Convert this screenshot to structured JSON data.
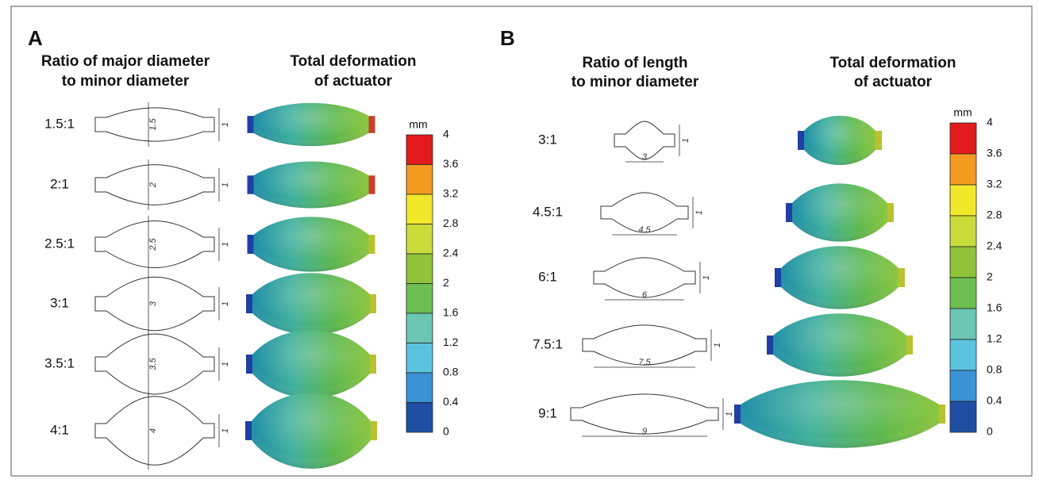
{
  "panels": [
    {
      "label": "A",
      "headers": [
        [
          "Ratio of major diameter",
          "to minor diameter"
        ],
        [
          "Total deformation",
          "of actuator"
        ]
      ],
      "rows": [
        {
          "ratio": "1.5:1",
          "dimension": "1.5",
          "minor": "1"
        },
        {
          "ratio": "2:1",
          "dimension": "2",
          "minor": "1"
        },
        {
          "ratio": "2.5:1",
          "dimension": "2.5",
          "minor": "1"
        },
        {
          "ratio": "3:1",
          "dimension": "3",
          "minor": "1"
        },
        {
          "ratio": "3.5:1",
          "dimension": "3.5",
          "minor": "1"
        },
        {
          "ratio": "4:1",
          "dimension": "4",
          "minor": "1"
        }
      ],
      "colorbar": {
        "unit": "mm",
        "ticks": [
          "4",
          "3.6",
          "3.2",
          "2.8",
          "2.4",
          "2",
          "1.6",
          "1.2",
          "0.8",
          "0.4",
          "0"
        ]
      }
    },
    {
      "label": "B",
      "headers": [
        [
          "Ratio of length",
          "to minor diameter"
        ],
        [
          "Total deformation",
          "of actuator"
        ]
      ],
      "rows": [
        {
          "ratio": "3:1",
          "dimension": "3",
          "minor": "1"
        },
        {
          "ratio": "4.5:1",
          "dimension": "4.5",
          "minor": "1"
        },
        {
          "ratio": "6:1",
          "dimension": "6",
          "minor": "1"
        },
        {
          "ratio": "7.5:1",
          "dimension": "7.5",
          "minor": "1"
        },
        {
          "ratio": "9:1",
          "dimension": "9",
          "minor": "1"
        }
      ],
      "colorbar": {
        "unit": "mm",
        "ticks": [
          "4",
          "3.6",
          "3.2",
          "2.8",
          "2.4",
          "2",
          "1.6",
          "1.2",
          "0.8",
          "0.4",
          "0"
        ]
      }
    }
  ],
  "colorbar_colors": [
    "#e31a1c",
    "#f39a1f",
    "#f2e82a",
    "#c8dc3a",
    "#8fc43a",
    "#6cbf50",
    "#6cc6b4",
    "#5bc3df",
    "#3a93d6",
    "#1f4fa3"
  ]
}
